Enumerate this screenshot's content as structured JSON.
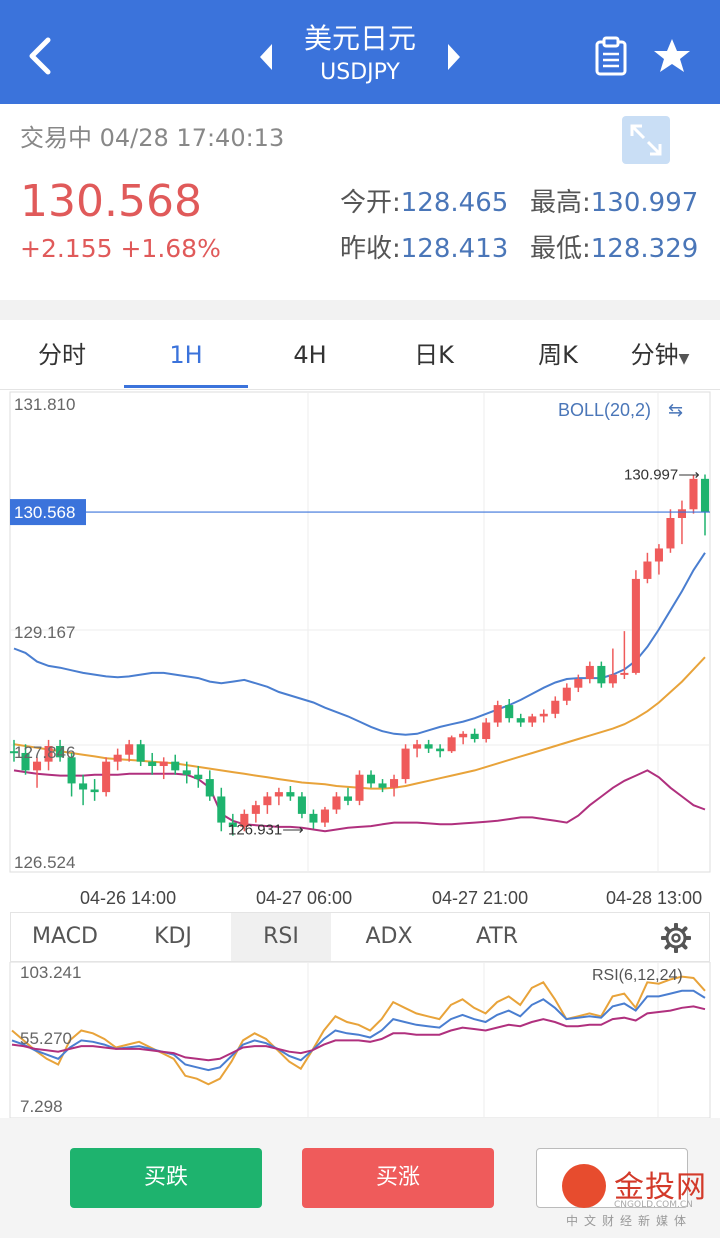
{
  "header": {
    "title": "美元日元",
    "symbol": "USDJPY"
  },
  "quote": {
    "status": "交易中 04/28 17:40:13",
    "price": "130.568",
    "change": "+2.155 +1.68%",
    "open_label": "今开:",
    "open_value": "128.465",
    "high_label": "最高:",
    "high_value": "130.997",
    "prev_close_label": "昨收:",
    "prev_close_value": "128.413",
    "low_label": "最低:",
    "low_value": "128.329"
  },
  "tabs": [
    "分时",
    "1H",
    "4H",
    "日K",
    "周K",
    "分钟"
  ],
  "active_tab": "1H",
  "chart": {
    "indicator_label": "BOLL(20,2)",
    "y_labels": [
      "131.810",
      "129.167",
      "127.846",
      "126.524"
    ],
    "current_price_label": "130.568",
    "high_marker": "130.997",
    "low_marker": "126.931",
    "x_labels": [
      "04-26 14:00",
      "04-27 06:00",
      "04-27 21:00",
      "04-28 13:00"
    ]
  },
  "indicator_tabs": [
    "MACD",
    "KDJ",
    "RSI",
    "ADX",
    "ATR"
  ],
  "active_indicator": "RSI",
  "rsi": {
    "label": "RSI(6,12,24)",
    "y_labels": [
      "103.241",
      "55.270",
      "7.298"
    ]
  },
  "footer": {
    "sell_label": "买跌",
    "buy_label": "买涨"
  },
  "logo": {
    "name": "金投网",
    "url": "CNGOLD.COM.CN",
    "tagline": "中文财经新媒体"
  },
  "colors": {
    "header": "#3b73db",
    "up": "#ef5b5b",
    "down": "#1eb36e",
    "boll_upper": "#4a7ed0",
    "boll_mid": "#e8a33a",
    "boll_lower": "#b0307e"
  },
  "chart_data": {
    "type": "candlestick",
    "title": "",
    "x_tick_labels": [
      "04-26 14:00",
      "04-27 06:00",
      "04-27 21:00",
      "04-28 13:00"
    ],
    "ylim": [
      126.524,
      131.81
    ],
    "y_ticks": [
      131.81,
      129.167,
      127.846,
      126.524
    ],
    "current_price": 130.568,
    "annotations": [
      {
        "text": "130.997",
        "value": 130.997
      },
      {
        "text": "126.931",
        "value": 126.931
      }
    ],
    "candles": [
      [
        127.82,
        127.95,
        127.7,
        127.8
      ],
      [
        127.8,
        127.9,
        127.55,
        127.6
      ],
      [
        127.6,
        127.75,
        127.4,
        127.7
      ],
      [
        127.7,
        127.95,
        127.6,
        127.88
      ],
      [
        127.88,
        127.95,
        127.7,
        127.75
      ],
      [
        127.75,
        127.8,
        127.3,
        127.45
      ],
      [
        127.45,
        127.55,
        127.2,
        127.38
      ],
      [
        127.38,
        127.5,
        127.25,
        127.35
      ],
      [
        127.35,
        127.75,
        127.3,
        127.7
      ],
      [
        127.7,
        127.85,
        127.6,
        127.78
      ],
      [
        127.78,
        127.95,
        127.7,
        127.9
      ],
      [
        127.9,
        127.95,
        127.65,
        127.7
      ],
      [
        127.7,
        127.8,
        127.55,
        127.65
      ],
      [
        127.65,
        127.75,
        127.5,
        127.7
      ],
      [
        127.7,
        127.78,
        127.55,
        127.6
      ],
      [
        127.6,
        127.7,
        127.45,
        127.55
      ],
      [
        127.55,
        127.65,
        127.4,
        127.5
      ],
      [
        127.5,
        127.6,
        127.25,
        127.3
      ],
      [
        127.3,
        127.4,
        126.9,
        127.0
      ],
      [
        127.0,
        127.1,
        126.85,
        126.95
      ],
      [
        126.95,
        127.15,
        126.9,
        127.1
      ],
      [
        127.1,
        127.25,
        127.0,
        127.2
      ],
      [
        127.2,
        127.35,
        127.1,
        127.3
      ],
      [
        127.3,
        127.4,
        127.2,
        127.35
      ],
      [
        127.35,
        127.42,
        127.25,
        127.3
      ],
      [
        127.3,
        127.35,
        127.05,
        127.1
      ],
      [
        127.1,
        127.15,
        126.93,
        127.0
      ],
      [
        127.0,
        127.18,
        126.95,
        127.15
      ],
      [
        127.15,
        127.35,
        127.1,
        127.3
      ],
      [
        127.3,
        127.4,
        127.2,
        127.25
      ],
      [
        127.25,
        127.6,
        127.2,
        127.55
      ],
      [
        127.55,
        127.6,
        127.4,
        127.45
      ],
      [
        127.45,
        127.5,
        127.35,
        127.4
      ],
      [
        127.4,
        127.55,
        127.3,
        127.5
      ],
      [
        127.5,
        127.9,
        127.45,
        127.85
      ],
      [
        127.85,
        127.95,
        127.75,
        127.9
      ],
      [
        127.9,
        127.95,
        127.8,
        127.85
      ],
      [
        127.85,
        127.9,
        127.75,
        127.82
      ],
      [
        127.82,
        128.0,
        127.8,
        127.98
      ],
      [
        127.98,
        128.05,
        127.9,
        128.02
      ],
      [
        128.02,
        128.08,
        127.92,
        127.96
      ],
      [
        127.96,
        128.2,
        127.92,
        128.15
      ],
      [
        128.15,
        128.4,
        128.1,
        128.35
      ],
      [
        128.35,
        128.42,
        128.15,
        128.2
      ],
      [
        128.2,
        128.25,
        128.1,
        128.15
      ],
      [
        128.15,
        128.25,
        128.1,
        128.22
      ],
      [
        128.22,
        128.3,
        128.15,
        128.25
      ],
      [
        128.25,
        128.45,
        128.2,
        128.4
      ],
      [
        128.4,
        128.6,
        128.35,
        128.55
      ],
      [
        128.55,
        128.7,
        128.5,
        128.65
      ],
      [
        128.65,
        128.85,
        128.6,
        128.8
      ],
      [
        128.8,
        128.85,
        128.55,
        128.6
      ],
      [
        128.6,
        129.0,
        128.55,
        128.7
      ],
      [
        128.7,
        129.2,
        128.65,
        128.72
      ],
      [
        128.72,
        129.9,
        128.7,
        129.8
      ],
      [
        129.8,
        130.1,
        129.75,
        130.0
      ],
      [
        130.0,
        130.2,
        129.85,
        130.15
      ],
      [
        130.15,
        130.6,
        130.1,
        130.5
      ],
      [
        130.5,
        130.7,
        130.2,
        130.6
      ],
      [
        130.6,
        131.0,
        130.55,
        130.95
      ],
      [
        130.95,
        131.0,
        130.3,
        130.57
      ]
    ],
    "series": [
      {
        "values": [
          129.0,
          128.95,
          128.85,
          128.8,
          128.78,
          128.75,
          128.72,
          128.7,
          128.68,
          128.67,
          128.68,
          128.7,
          128.72,
          128.72,
          128.7,
          128.68,
          128.66,
          128.62,
          128.6,
          128.62,
          128.64,
          128.6,
          128.56,
          128.5,
          128.46,
          128.42,
          128.38,
          128.32,
          128.27,
          128.22,
          128.16,
          128.1,
          128.05,
          128.02,
          128.01,
          128.02,
          128.06,
          128.1,
          128.13,
          128.16,
          128.2,
          128.25,
          128.3,
          128.35,
          128.41,
          128.48,
          128.55,
          128.61,
          128.65,
          128.66,
          128.66,
          128.66,
          128.7,
          128.76,
          128.86,
          129.02,
          129.22,
          129.44,
          129.66,
          129.9,
          130.1
        ]
      },
      {
        "values": [
          127.9,
          127.88,
          127.86,
          127.84,
          127.82,
          127.8,
          127.78,
          127.76,
          127.74,
          127.73,
          127.72,
          127.71,
          127.7,
          127.69,
          127.68,
          127.66,
          127.64,
          127.62,
          127.6,
          127.58,
          127.56,
          127.54,
          127.52,
          127.5,
          127.48,
          127.46,
          127.45,
          127.44,
          127.42,
          127.41,
          127.4,
          127.39,
          127.39,
          127.4,
          127.42,
          127.45,
          127.48,
          127.51,
          127.54,
          127.57,
          127.6,
          127.64,
          127.68,
          127.72,
          127.76,
          127.8,
          127.84,
          127.88,
          127.92,
          127.96,
          128.0,
          128.04,
          128.08,
          128.13,
          128.2,
          128.28,
          128.38,
          128.5,
          128.62,
          128.76,
          128.9
        ]
      },
      {
        "values": [
          127.6,
          127.58,
          127.56,
          127.55,
          127.54,
          127.54,
          127.54,
          127.55,
          127.55,
          127.55,
          127.56,
          127.56,
          127.56,
          127.56,
          127.56,
          127.55,
          127.5,
          127.4,
          127.1,
          127.02,
          126.98,
          126.97,
          126.96,
          126.95,
          126.95,
          126.94,
          126.92,
          126.9,
          126.92,
          126.94,
          126.95,
          126.96,
          126.98,
          127.0,
          127.0,
          127.0,
          126.99,
          126.98,
          126.98,
          126.99,
          127.0,
          127.01,
          127.02,
          127.04,
          127.06,
          127.06,
          127.04,
          127.02,
          127.0,
          127.08,
          127.2,
          127.3,
          127.4,
          127.48,
          127.54,
          127.6,
          127.52,
          127.4,
          127.3,
          127.2,
          127.15
        ]
      }
    ]
  },
  "rsi_data": {
    "type": "line",
    "ylim": [
      7.298,
      103.241
    ],
    "series": [
      {
        "values": [
          62,
          55,
          48,
          42,
          38,
          55,
          62,
          60,
          56,
          50,
          52,
          54,
          50,
          46,
          42,
          30,
          28,
          24,
          28,
          40,
          55,
          60,
          56,
          48,
          40,
          35,
          48,
          62,
          72,
          68,
          66,
          62,
          70,
          82,
          78,
          74,
          72,
          70,
          80,
          84,
          78,
          74,
          82,
          86,
          80,
          92,
          96,
          84,
          70,
          72,
          74,
          72,
          86,
          88,
          78,
          96,
          95,
          98,
          100,
          99,
          90
        ]
      },
      {
        "values": [
          55,
          52,
          48,
          45,
          42,
          50,
          55,
          54,
          52,
          49,
          50,
          51,
          49,
          47,
          45,
          38,
          36,
          34,
          36,
          44,
          52,
          55,
          53,
          49,
          44,
          41,
          48,
          56,
          62,
          60,
          59,
          57,
          62,
          70,
          68,
          66,
          65,
          64,
          70,
          73,
          70,
          68,
          73,
          76,
          72,
          80,
          84,
          78,
          70,
          71,
          72,
          71,
          79,
          81,
          76,
          86,
          86,
          88,
          90,
          90,
          85
        ]
      },
      {
        "values": [
          52,
          51,
          49,
          48,
          47,
          49,
          51,
          51,
          50,
          49,
          49,
          49,
          48,
          47,
          46,
          43,
          42,
          41,
          42,
          46,
          50,
          51,
          51,
          49,
          47,
          46,
          48,
          52,
          55,
          55,
          55,
          54,
          56,
          60,
          60,
          59,
          59,
          59,
          62,
          64,
          63,
          62,
          64,
          66,
          65,
          68,
          70,
          68,
          65,
          65,
          66,
          66,
          70,
          71,
          69,
          74,
          75,
          76,
          78,
          79,
          77
        ]
      }
    ]
  }
}
